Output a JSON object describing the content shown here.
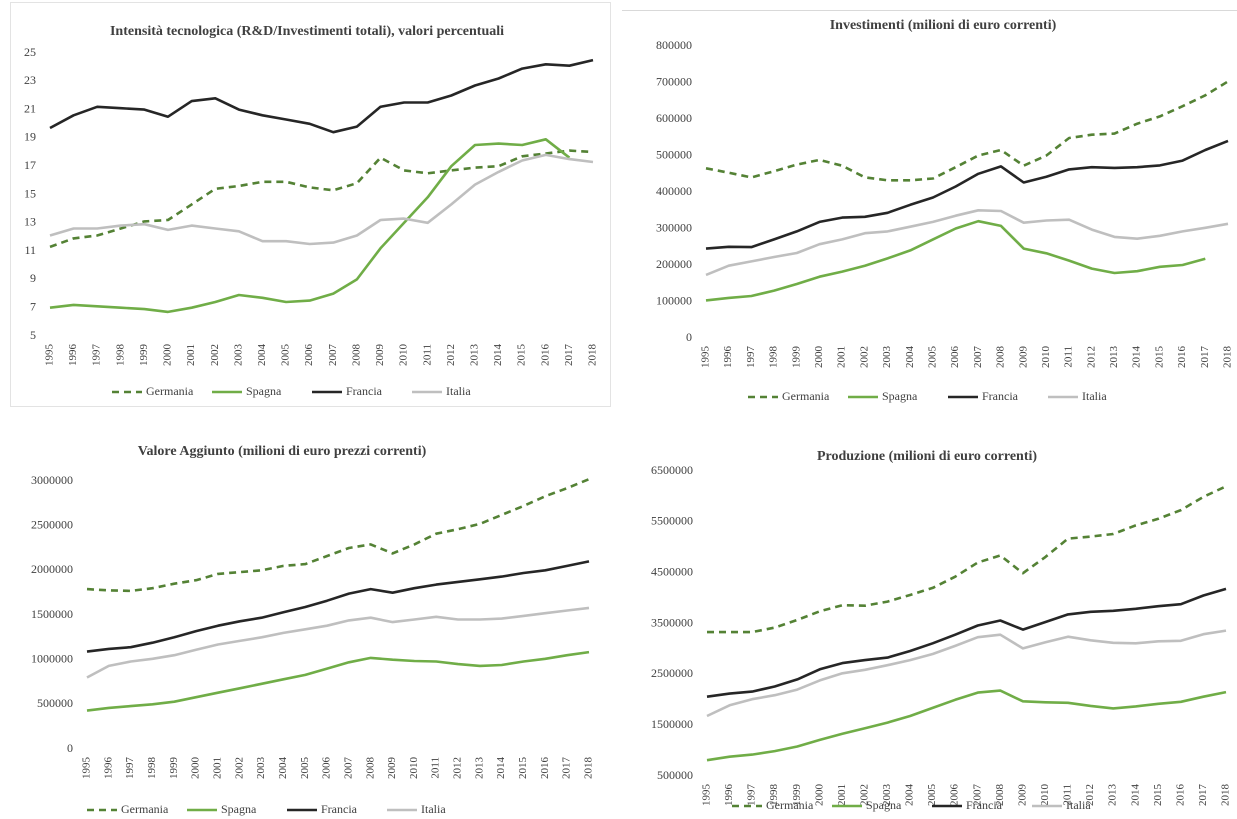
{
  "chart_data": [
    {
      "type": "line",
      "title": "Intensità tecnologica (R&D/Investimenti totali), valori percentuali",
      "categories": [
        "1995",
        "1996",
        "1997",
        "1998",
        "1999",
        "2000",
        "2001",
        "2002",
        "2003",
        "2004",
        "2005",
        "2006",
        "2007",
        "2008",
        "2009",
        "2010",
        "2011",
        "2012",
        "2013",
        "2014",
        "2015",
        "2016",
        "2017",
        "2018"
      ],
      "ylim": [
        5,
        25
      ],
      "yticks": [
        5,
        7,
        9,
        11,
        13,
        15,
        17,
        19,
        21,
        23,
        25
      ],
      "series": [
        {
          "name": "Germania",
          "color": "#548235",
          "linestyle": "dashed",
          "values": [
            11.3,
            11.9,
            12.1,
            12.6,
            13.1,
            13.2,
            14.3,
            15.4,
            15.6,
            15.9,
            15.9,
            15.5,
            15.3,
            15.8,
            17.6,
            16.7,
            16.5,
            16.7,
            16.9,
            17.0,
            17.7,
            17.9,
            18.1,
            18.0
          ]
        },
        {
          "name": "Spagna",
          "color": "#70ad47",
          "linestyle": "solid",
          "values": [
            7.0,
            7.2,
            7.1,
            7.0,
            6.9,
            6.7,
            7.0,
            7.4,
            7.9,
            7.7,
            7.4,
            7.5,
            8.0,
            9.0,
            11.2,
            13.0,
            14.8,
            17.0,
            18.5,
            18.6,
            18.5,
            18.9,
            17.6,
            null
          ]
        },
        {
          "name": "Francia",
          "color": "#262626",
          "linestyle": "solid",
          "values": [
            19.7,
            20.6,
            21.2,
            21.1,
            21.0,
            20.5,
            21.6,
            21.8,
            21.0,
            20.6,
            20.3,
            20.0,
            19.4,
            19.8,
            21.2,
            21.5,
            21.5,
            22.0,
            22.7,
            23.2,
            23.9,
            24.2,
            24.1,
            24.5
          ]
        },
        {
          "name": "Italia",
          "color": "#bfbfbf",
          "linestyle": "solid",
          "values": [
            12.1,
            12.6,
            12.6,
            12.8,
            12.9,
            12.5,
            12.8,
            12.6,
            12.4,
            11.7,
            11.7,
            11.5,
            11.6,
            12.1,
            13.2,
            13.3,
            13.0,
            14.3,
            15.7,
            16.6,
            17.4,
            17.8,
            17.5,
            17.3
          ]
        }
      ]
    },
    {
      "type": "line",
      "title": "Investimenti (milioni di euro correnti)",
      "categories": [
        "1995",
        "1996",
        "1997",
        "1998",
        "1999",
        "2000",
        "2001",
        "2002",
        "2003",
        "2004",
        "2005",
        "2006",
        "2007",
        "2008",
        "2009",
        "2010",
        "2011",
        "2012",
        "2013",
        "2014",
        "2015",
        "2016",
        "2017",
        "2018"
      ],
      "ylim": [
        0,
        800000
      ],
      "yticks": [
        0,
        100000,
        200000,
        300000,
        400000,
        500000,
        600000,
        700000,
        800000
      ],
      "series": [
        {
          "name": "Germania",
          "color": "#548235",
          "linestyle": "dashed",
          "values": [
            465000,
            453000,
            440000,
            457000,
            475000,
            488000,
            472000,
            440000,
            432000,
            432000,
            437000,
            468000,
            500000,
            515000,
            472000,
            500000,
            548000,
            557000,
            560000,
            587000,
            607000,
            635000,
            665000,
            703000
          ]
        },
        {
          "name": "Spagna",
          "color": "#70ad47",
          "linestyle": "solid",
          "values": [
            103000,
            110000,
            115000,
            130000,
            148000,
            168000,
            182000,
            198000,
            218000,
            240000,
            270000,
            300000,
            320000,
            307000,
            245000,
            232000,
            212000,
            190000,
            178000,
            183000,
            195000,
            200000,
            217000,
            null
          ]
        },
        {
          "name": "Francia",
          "color": "#262626",
          "linestyle": "solid",
          "values": [
            245000,
            250000,
            249000,
            270000,
            292000,
            318000,
            330000,
            332000,
            343000,
            365000,
            385000,
            415000,
            450000,
            470000,
            426000,
            442000,
            462000,
            468000,
            466000,
            468000,
            473000,
            486000,
            515000,
            540000
          ]
        },
        {
          "name": "Italia",
          "color": "#bfbfbf",
          "linestyle": "solid",
          "values": [
            173000,
            198000,
            210000,
            222000,
            233000,
            257000,
            270000,
            287000,
            292000,
            305000,
            318000,
            335000,
            350000,
            348000,
            316000,
            322000,
            324000,
            297000,
            277000,
            272000,
            280000,
            292000,
            302000,
            313000
          ]
        }
      ]
    },
    {
      "type": "line",
      "title": "Valore Aggiunto (milioni di euro prezzi correnti)",
      "categories": [
        "1995",
        "1996",
        "1997",
        "1998",
        "1999",
        "2000",
        "2001",
        "2002",
        "2003",
        "2004",
        "2005",
        "2006",
        "2007",
        "2008",
        "2009",
        "2010",
        "2011",
        "2012",
        "2013",
        "2014",
        "2015",
        "2016",
        "2017",
        "2018"
      ],
      "ylim": [
        0,
        3000000
      ],
      "yticks": [
        0,
        500000,
        1000000,
        1500000,
        2000000,
        2500000,
        3000000
      ],
      "series": [
        {
          "name": "Germania",
          "color": "#548235",
          "linestyle": "dashed",
          "values": [
            1790000,
            1775000,
            1770000,
            1800000,
            1850000,
            1890000,
            1960000,
            1980000,
            2000000,
            2050000,
            2070000,
            2160000,
            2250000,
            2290000,
            2190000,
            2290000,
            2410000,
            2460000,
            2520000,
            2620000,
            2720000,
            2830000,
            2920000,
            3020000
          ]
        },
        {
          "name": "Spagna",
          "color": "#70ad47",
          "linestyle": "solid",
          "values": [
            430000,
            460000,
            480000,
            500000,
            530000,
            580000,
            630000,
            680000,
            730000,
            780000,
            830000,
            900000,
            970000,
            1020000,
            1000000,
            985000,
            980000,
            950000,
            930000,
            940000,
            980000,
            1010000,
            1050000,
            1085000
          ]
        },
        {
          "name": "Francia",
          "color": "#262626",
          "linestyle": "solid",
          "values": [
            1090000,
            1120000,
            1140000,
            1190000,
            1250000,
            1320000,
            1380000,
            1430000,
            1470000,
            1530000,
            1590000,
            1660000,
            1740000,
            1790000,
            1750000,
            1800000,
            1840000,
            1870000,
            1900000,
            1930000,
            1970000,
            2000000,
            2050000,
            2100000
          ]
        },
        {
          "name": "Italia",
          "color": "#bfbfbf",
          "linestyle": "solid",
          "values": [
            800000,
            930000,
            980000,
            1010000,
            1050000,
            1110000,
            1170000,
            1210000,
            1250000,
            1300000,
            1340000,
            1380000,
            1440000,
            1470000,
            1420000,
            1450000,
            1480000,
            1450000,
            1450000,
            1460000,
            1490000,
            1520000,
            1550000,
            1580000
          ]
        }
      ]
    },
    {
      "type": "line",
      "title": "Produzione (milioni di euro correnti)",
      "categories": [
        "1995",
        "1996",
        "1997",
        "1998",
        "1999",
        "2000",
        "2001",
        "2002",
        "2003",
        "2004",
        "2005",
        "2006",
        "2007",
        "2008",
        "2009",
        "2010",
        "2011",
        "2012",
        "2013",
        "2014",
        "2015",
        "2016",
        "2017",
        "2018"
      ],
      "ylim": [
        500000,
        6500000
      ],
      "yticks": [
        500000,
        1500000,
        2500000,
        3500000,
        4500000,
        5500000,
        6500000
      ],
      "series": [
        {
          "name": "Germania",
          "color": "#548235",
          "linestyle": "dashed",
          "values": [
            3330000,
            3330000,
            3330000,
            3420000,
            3570000,
            3740000,
            3860000,
            3850000,
            3930000,
            4060000,
            4200000,
            4420000,
            4700000,
            4840000,
            4490000,
            4810000,
            5170000,
            5210000,
            5260000,
            5430000,
            5560000,
            5730000,
            5990000,
            6200000
          ]
        },
        {
          "name": "Spagna",
          "color": "#70ad47",
          "linestyle": "solid",
          "values": [
            810000,
            880000,
            920000,
            990000,
            1080000,
            1210000,
            1330000,
            1440000,
            1550000,
            1680000,
            1840000,
            2000000,
            2140000,
            2180000,
            1970000,
            1950000,
            1940000,
            1880000,
            1830000,
            1870000,
            1920000,
            1960000,
            2060000,
            2150000
          ]
        },
        {
          "name": "Francia",
          "color": "#262626",
          "linestyle": "solid",
          "values": [
            2060000,
            2120000,
            2160000,
            2260000,
            2400000,
            2600000,
            2720000,
            2780000,
            2830000,
            2960000,
            3110000,
            3280000,
            3460000,
            3560000,
            3380000,
            3530000,
            3680000,
            3730000,
            3750000,
            3790000,
            3840000,
            3880000,
            4050000,
            4180000
          ]
        },
        {
          "name": "Italia",
          "color": "#bfbfbf",
          "linestyle": "solid",
          "values": [
            1680000,
            1890000,
            2010000,
            2090000,
            2200000,
            2380000,
            2520000,
            2590000,
            2680000,
            2780000,
            2900000,
            3060000,
            3230000,
            3280000,
            3010000,
            3130000,
            3240000,
            3170000,
            3120000,
            3110000,
            3150000,
            3160000,
            3290000,
            3360000
          ]
        }
      ]
    }
  ]
}
